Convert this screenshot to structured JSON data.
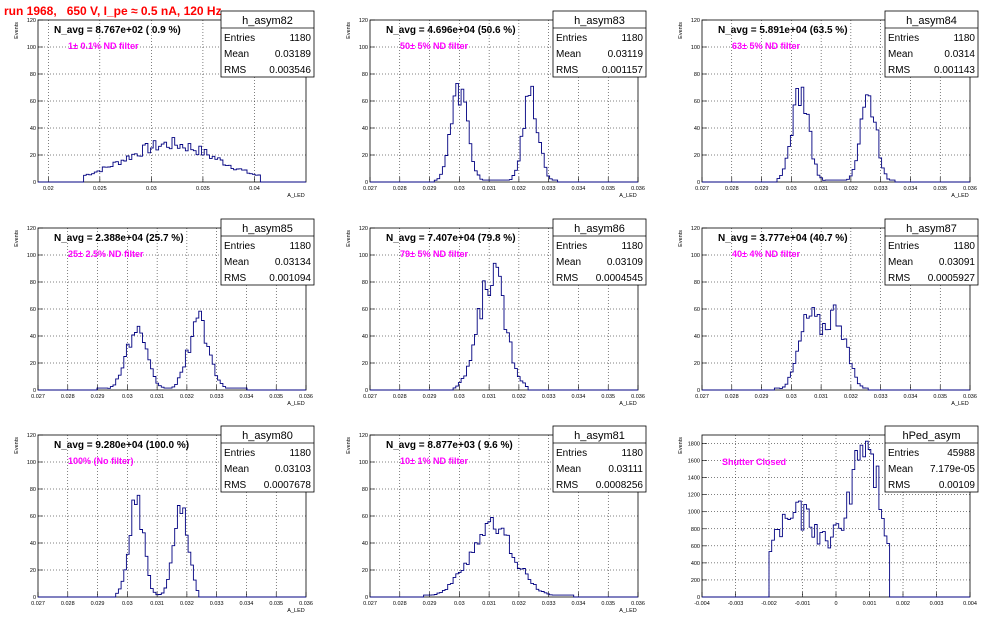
{
  "run_title": "run 1968,   650 V, I_pe ≈ 0.5 nA, 120 Hz",
  "colors": {
    "histogram": "#000080",
    "annotation": "#ff00ff",
    "title": "#ff0000",
    "grid": "#000000"
  },
  "chart_data": [
    {
      "type": "histogram",
      "name": "h_asym82",
      "stats": [
        [
          "Entries",
          "1180"
        ],
        [
          "Mean",
          "0.03189"
        ],
        [
          "RMS",
          "0.003546"
        ]
      ],
      "navg": "N_avg = 8.767e+02 ( 0.9 %)",
      "filter": "1± 0.1% ND filter",
      "ylabel": "Events",
      "xlabel": "A_LED",
      "xlim": [
        0.019,
        0.045
      ],
      "ylim": [
        0,
        120
      ],
      "xticks": [
        {
          "v": 0.02,
          "l": "0.02"
        },
        {
          "v": 0.025,
          "l": "0.025"
        },
        {
          "v": 0.03,
          "l": "0.03"
        },
        {
          "v": 0.035,
          "l": "0.035"
        },
        {
          "v": 0.04,
          "l": "0.04"
        }
      ],
      "yticks": [
        0,
        20,
        40,
        60,
        80,
        100,
        120
      ],
      "peaks": [
        {
          "mu": 0.0319,
          "sigma": 0.0045,
          "amp": 28
        }
      ],
      "hist_range": [
        0.0235,
        0.0405
      ]
    },
    {
      "type": "histogram",
      "name": "h_asym83",
      "stats": [
        [
          "Entries",
          "1180"
        ],
        [
          "Mean",
          "0.03119"
        ],
        [
          "RMS",
          "0.001157"
        ]
      ],
      "navg": "N_avg = 4.696e+04 (50.6 %)",
      "filter": "50± 5% ND filter",
      "ylabel": "Events",
      "xlabel": "A_LED",
      "xlim": [
        0.027,
        0.036
      ],
      "ylim": [
        0,
        120
      ],
      "xticks": [
        {
          "v": 0.027,
          "l": "0.027"
        },
        {
          "v": 0.028,
          "l": "0.028"
        },
        {
          "v": 0.029,
          "l": "0.029"
        },
        {
          "v": 0.03,
          "l": "0.03"
        },
        {
          "v": 0.031,
          "l": "0.031"
        },
        {
          "v": 0.032,
          "l": "0.032"
        },
        {
          "v": 0.033,
          "l": "0.033"
        },
        {
          "v": 0.034,
          "l": "0.034"
        },
        {
          "v": 0.035,
          "l": "0.035"
        },
        {
          "v": 0.036,
          "l": "0.036"
        }
      ],
      "yticks": [
        0,
        20,
        40,
        60,
        80,
        100,
        120
      ],
      "peaks": [
        {
          "mu": 0.03,
          "sigma": 0.00028,
          "amp": 68
        },
        {
          "mu": 0.0324,
          "sigma": 0.00026,
          "amp": 62
        }
      ],
      "hist_range": [
        0.0292,
        0.0333
      ]
    },
    {
      "type": "histogram",
      "name": "h_asym84",
      "stats": [
        [
          "Entries",
          "1180"
        ],
        [
          "Mean",
          "0.0314"
        ],
        [
          "RMS",
          "0.001143"
        ]
      ],
      "navg": "N_avg = 5.891e+04 (63.5 %)",
      "filter": "63± 5% ND filter",
      "ylabel": "Events",
      "xlabel": "A_LED",
      "xlim": [
        0.027,
        0.036
      ],
      "ylim": [
        0,
        120
      ],
      "xticks": [
        {
          "v": 0.027,
          "l": "0.027"
        },
        {
          "v": 0.028,
          "l": "0.028"
        },
        {
          "v": 0.029,
          "l": "0.029"
        },
        {
          "v": 0.03,
          "l": "0.03"
        },
        {
          "v": 0.031,
          "l": "0.031"
        },
        {
          "v": 0.032,
          "l": "0.032"
        },
        {
          "v": 0.033,
          "l": "0.033"
        },
        {
          "v": 0.034,
          "l": "0.034"
        },
        {
          "v": 0.035,
          "l": "0.035"
        },
        {
          "v": 0.036,
          "l": "0.036"
        }
      ],
      "yticks": [
        0,
        20,
        40,
        60,
        80,
        100,
        120
      ],
      "peaks": [
        {
          "mu": 0.0303,
          "sigma": 0.00028,
          "amp": 68
        },
        {
          "mu": 0.0326,
          "sigma": 0.00026,
          "amp": 64
        }
      ],
      "hist_range": [
        0.0295,
        0.0335
      ]
    },
    {
      "type": "histogram",
      "name": "h_asym85",
      "stats": [
        [
          "Entries",
          "1180"
        ],
        [
          "Mean",
          "0.03134"
        ],
        [
          "RMS",
          "0.001094"
        ]
      ],
      "navg": "N_avg = 2.388e+04 (25.7 %)",
      "filter": "25± 2.5% ND filter",
      "ylabel": "Events",
      "xlabel": "A_LED",
      "xlim": [
        0.027,
        0.036
      ],
      "ylim": [
        0,
        120
      ],
      "xticks": [
        {
          "v": 0.027,
          "l": "0.027"
        },
        {
          "v": 0.028,
          "l": "0.028"
        },
        {
          "v": 0.029,
          "l": "0.029"
        },
        {
          "v": 0.03,
          "l": "0.03"
        },
        {
          "v": 0.031,
          "l": "0.031"
        },
        {
          "v": 0.032,
          "l": "0.032"
        },
        {
          "v": 0.033,
          "l": "0.033"
        },
        {
          "v": 0.034,
          "l": "0.034"
        },
        {
          "v": 0.035,
          "l": "0.035"
        },
        {
          "v": 0.036,
          "l": "0.036"
        }
      ],
      "yticks": [
        0,
        20,
        40,
        60,
        80,
        100,
        120
      ],
      "peaks": [
        {
          "mu": 0.0303,
          "sigma": 0.00035,
          "amp": 42
        },
        {
          "mu": 0.0324,
          "sigma": 0.00035,
          "amp": 50
        }
      ],
      "hist_range": [
        0.029,
        0.034
      ]
    },
    {
      "type": "histogram",
      "name": "h_asym86",
      "stats": [
        [
          "Entries",
          "1180"
        ],
        [
          "Mean",
          "0.03109"
        ],
        [
          "RMS",
          "0.0004545"
        ]
      ],
      "navg": "N_avg = 7.407e+04 (79.8 %)",
      "filter": "79± 5% ND filter",
      "ylabel": "Events",
      "xlabel": "A_LED",
      "xlim": [
        0.027,
        0.036
      ],
      "ylim": [
        0,
        120
      ],
      "xticks": [
        {
          "v": 0.027,
          "l": "0.027"
        },
        {
          "v": 0.028,
          "l": "0.028"
        },
        {
          "v": 0.029,
          "l": "0.029"
        },
        {
          "v": 0.03,
          "l": "0.03"
        },
        {
          "v": 0.031,
          "l": "0.031"
        },
        {
          "v": 0.032,
          "l": "0.032"
        },
        {
          "v": 0.033,
          "l": "0.033"
        },
        {
          "v": 0.034,
          "l": "0.034"
        },
        {
          "v": 0.035,
          "l": "0.035"
        },
        {
          "v": 0.036,
          "l": "0.036"
        }
      ],
      "yticks": [
        0,
        20,
        40,
        60,
        80,
        100,
        120
      ],
      "peaks": [
        {
          "mu": 0.0311,
          "sigma": 0.00045,
          "amp": 86
        }
      ],
      "hist_range": [
        0.0298,
        0.0323
      ]
    },
    {
      "type": "histogram",
      "name": "h_asym87",
      "stats": [
        [
          "Entries",
          "1180"
        ],
        [
          "Mean",
          "0.03091"
        ],
        [
          "RMS",
          "0.0005927"
        ]
      ],
      "navg": "N_avg = 3.777e+04 (40.7 %)",
      "filter": "40± 4% ND filter",
      "ylabel": "Events",
      "xlabel": "A_LED",
      "xlim": [
        0.027,
        0.036
      ],
      "ylim": [
        0,
        120
      ],
      "xticks": [
        {
          "v": 0.027,
          "l": "0.027"
        },
        {
          "v": 0.028,
          "l": "0.028"
        },
        {
          "v": 0.029,
          "l": "0.029"
        },
        {
          "v": 0.03,
          "l": "0.03"
        },
        {
          "v": 0.031,
          "l": "0.031"
        },
        {
          "v": 0.032,
          "l": "0.032"
        },
        {
          "v": 0.033,
          "l": "0.033"
        },
        {
          "v": 0.034,
          "l": "0.034"
        },
        {
          "v": 0.035,
          "l": "0.035"
        },
        {
          "v": 0.036,
          "l": "0.036"
        }
      ],
      "yticks": [
        0,
        20,
        40,
        60,
        80,
        100,
        120
      ],
      "peaks": [
        {
          "mu": 0.0306,
          "sigma": 0.00035,
          "amp": 52
        },
        {
          "mu": 0.0315,
          "sigma": 0.00035,
          "amp": 55
        }
      ],
      "hist_range": [
        0.0294,
        0.0326
      ]
    },
    {
      "type": "histogram",
      "name": "h_asym80",
      "stats": [
        [
          "Entries",
          "1180"
        ],
        [
          "Mean",
          "0.03103"
        ],
        [
          "RMS",
          "0.0007678"
        ]
      ],
      "navg": "N_avg = 9.280e+04 (100.0 %)",
      "filter": "100% (No filter)",
      "ylabel": "Events",
      "xlabel": "A_LED",
      "xlim": [
        0.027,
        0.036
      ],
      "ylim": [
        0,
        120
      ],
      "xticks": [
        {
          "v": 0.027,
          "l": "0.027"
        },
        {
          "v": 0.028,
          "l": "0.028"
        },
        {
          "v": 0.029,
          "l": "0.029"
        },
        {
          "v": 0.03,
          "l": "0.03"
        },
        {
          "v": 0.031,
          "l": "0.031"
        },
        {
          "v": 0.032,
          "l": "0.032"
        },
        {
          "v": 0.033,
          "l": "0.033"
        },
        {
          "v": 0.034,
          "l": "0.034"
        },
        {
          "v": 0.035,
          "l": "0.035"
        },
        {
          "v": 0.036,
          "l": "0.036"
        }
      ],
      "yticks": [
        0,
        20,
        40,
        60,
        80,
        100,
        120
      ],
      "peaks": [
        {
          "mu": 0.0303,
          "sigma": 0.00025,
          "amp": 68
        },
        {
          "mu": 0.0318,
          "sigma": 0.00025,
          "amp": 62
        }
      ],
      "hist_range": [
        0.0296,
        0.0324
      ]
    },
    {
      "type": "histogram",
      "name": "h_asym81",
      "stats": [
        [
          "Entries",
          "1180"
        ],
        [
          "Mean",
          "0.03111"
        ],
        [
          "RMS",
          "0.0008256"
        ]
      ],
      "navg": "N_avg = 8.877e+03 ( 9.6 %)",
      "filter": "10± 1% ND filter",
      "ylabel": "Events",
      "xlabel": "A_LED",
      "xlim": [
        0.027,
        0.036
      ],
      "ylim": [
        0,
        120
      ],
      "xticks": [
        {
          "v": 0.027,
          "l": "0.027"
        },
        {
          "v": 0.028,
          "l": "0.028"
        },
        {
          "v": 0.029,
          "l": "0.029"
        },
        {
          "v": 0.03,
          "l": "0.03"
        },
        {
          "v": 0.031,
          "l": "0.031"
        },
        {
          "v": 0.032,
          "l": "0.032"
        },
        {
          "v": 0.033,
          "l": "0.033"
        },
        {
          "v": 0.034,
          "l": "0.034"
        },
        {
          "v": 0.035,
          "l": "0.035"
        },
        {
          "v": 0.036,
          "l": "0.036"
        }
      ],
      "yticks": [
        0,
        20,
        40,
        60,
        80,
        100,
        120
      ],
      "peaks": [
        {
          "mu": 0.0311,
          "sigma": 0.00075,
          "amp": 52
        }
      ],
      "hist_range": [
        0.0288,
        0.0338
      ]
    },
    {
      "type": "histogram",
      "name": "hPed_asym",
      "stats": [
        [
          "Entries",
          "45988"
        ],
        [
          "Mean",
          "7.179e-05"
        ],
        [
          "RMS",
          "0.00109"
        ]
      ],
      "navg": "",
      "filter": "Shutter Closed",
      "ylabel": "Events",
      "xlabel": "",
      "xlim": [
        -0.004,
        0.004
      ],
      "ylim": [
        0,
        1900
      ],
      "xticks": [
        {
          "v": -0.004,
          "l": "-0.004"
        },
        {
          "v": -0.003,
          "l": "-0.003"
        },
        {
          "v": -0.002,
          "l": "-0.002"
        },
        {
          "v": -0.001,
          "l": "-0.001"
        },
        {
          "v": 0,
          "l": "0"
        },
        {
          "v": 0.001,
          "l": "0.001"
        },
        {
          "v": 0.002,
          "l": "0.002"
        },
        {
          "v": 0.003,
          "l": "0.003"
        },
        {
          "v": 0.004,
          "l": "0.004"
        }
      ],
      "yticks": [
        0,
        200,
        400,
        600,
        800,
        1000,
        1200,
        1400,
        1600,
        1800
      ],
      "peaks": [
        {
          "mu": -0.0013,
          "sigma": 0.0007,
          "amp": 860
        },
        {
          "mu": 0.0009,
          "sigma": 0.0005,
          "amp": 1500
        },
        {
          "mu": 0.0,
          "sigma": 0.0009,
          "amp": 300
        }
      ],
      "hist_range": [
        -0.002,
        0.0016
      ]
    }
  ]
}
